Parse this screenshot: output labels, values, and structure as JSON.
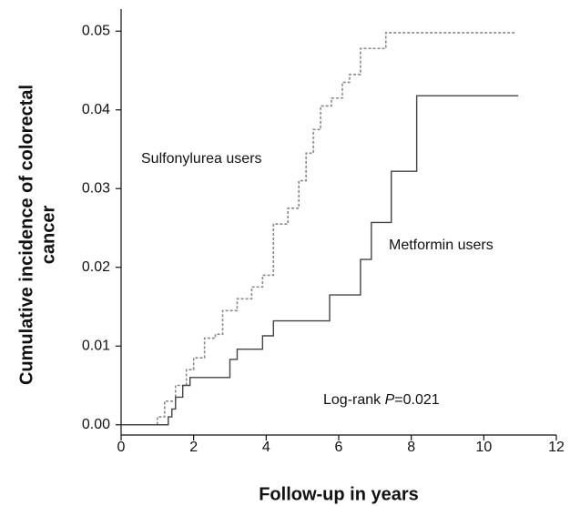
{
  "chart_data": {
    "type": "step",
    "x_label": "Follow-up in years",
    "y_label": [
      "Cumulative incidence of colorectal",
      "cancer"
    ],
    "xlim": [
      0,
      12
    ],
    "xticks": [
      0,
      2,
      4,
      6,
      8,
      10,
      12
    ],
    "ylim": [
      -0.0013,
      0.0528
    ],
    "yticks": [
      {
        "value": 0,
        "label": "0.00"
      },
      0.01,
      0.02,
      0.03,
      0.04,
      0.05
    ],
    "series": [
      {
        "name": "Sulfonylurea users",
        "color": "#888888",
        "dash": true,
        "x": [
          0,
          0.9,
          1.0,
          1.2,
          1.5,
          1.8,
          2.0,
          2.3,
          2.6,
          2.8,
          3.2,
          3.6,
          3.9,
          4.2,
          4.6,
          4.9,
          5.1,
          5.3,
          5.5,
          5.8,
          6.1,
          6.3,
          6.6,
          7.3,
          10.9
        ],
        "values": [
          0,
          0,
          0.001,
          0.003,
          0.005,
          0.007,
          0.0085,
          0.011,
          0.0115,
          0.0145,
          0.016,
          0.0175,
          0.019,
          0.0255,
          0.0275,
          0.031,
          0.0345,
          0.0375,
          0.0405,
          0.0415,
          0.0435,
          0.0445,
          0.0478,
          0.0498,
          0.0498
        ]
      },
      {
        "name": "Metformin users",
        "color": "#444444",
        "dash": false,
        "x": [
          0,
          1.3,
          1.4,
          1.5,
          1.7,
          1.9,
          3.0,
          3.2,
          3.9,
          4.2,
          5.75,
          6.6,
          6.9,
          7.45,
          8.15,
          10.95
        ],
        "values": [
          0,
          0.001,
          0.002,
          0.0035,
          0.005,
          0.006,
          0.0083,
          0.0096,
          0.0113,
          0.0132,
          0.0165,
          0.021,
          0.0257,
          0.0322,
          0.0418,
          0.0418
        ]
      }
    ],
    "annotation": [
      "Log-rank ",
      "P",
      "=0.021"
    ]
  }
}
